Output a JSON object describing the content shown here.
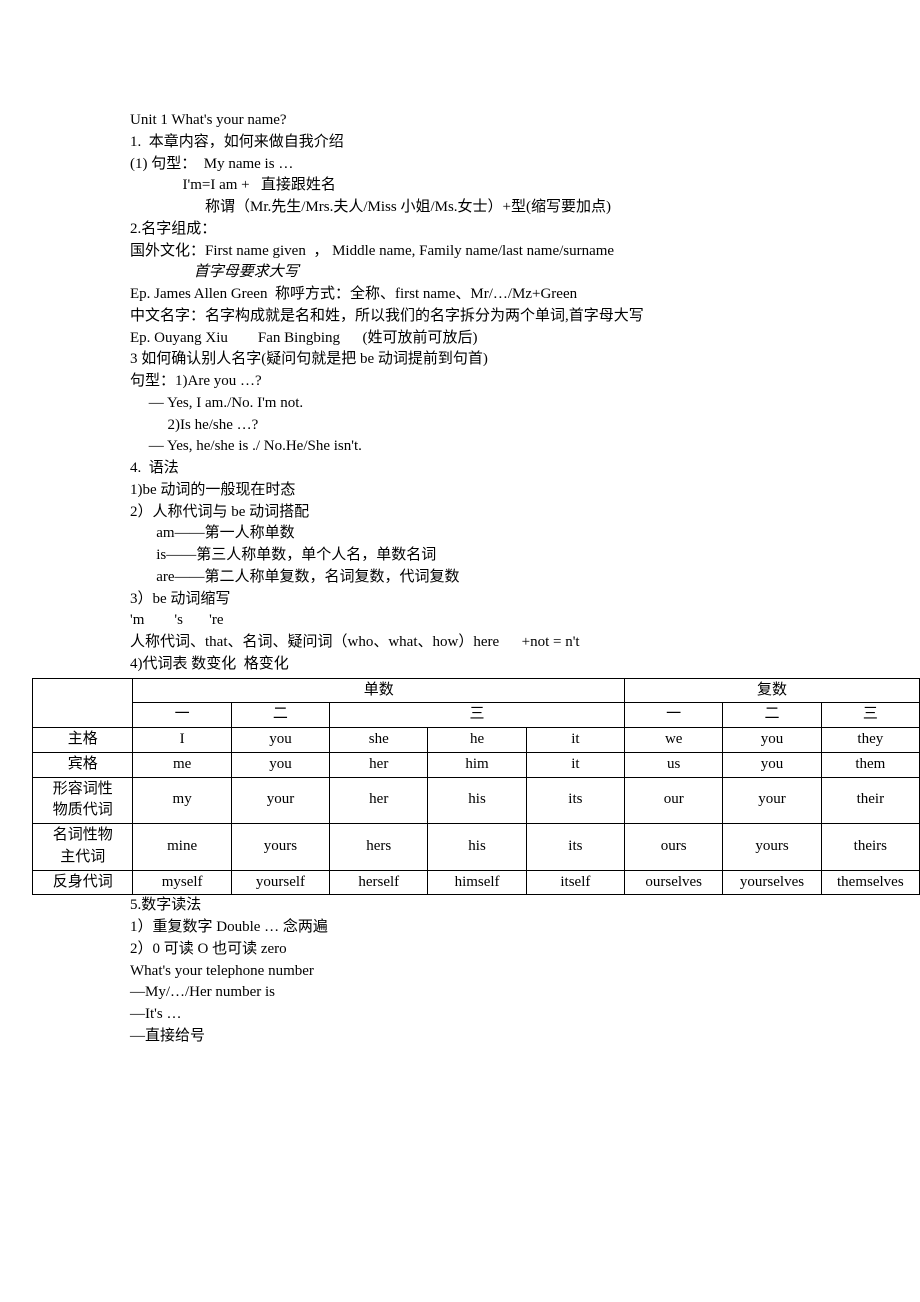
{
  "title": "Unit 1 What's your name?",
  "p1": "1.  本章内容，如何来做自我介绍",
  "p1_1": "(1) 句型：  My name is …",
  "p1_2": "              I'm=I am +   直接跟姓名",
  "p1_3": "                    称谓（Mr.先生/Mrs.夫人/Miss 小姐/Ms.女士）+型(缩写要加点)",
  "p2": "2.名字组成：",
  "p2_1": "国外文化：First name given  ， Middle name, Family name/last name/surname",
  "p2_2": "                 首字母要求大写",
  "p2_3": "Ep. James Allen Green  称呼方式：全称、first name、Mr/…/Mz+Green",
  "p2_4": "中文名字：名字构成就是名和姓，所以我们的名字拆分为两个单词,首字母大写",
  "p2_5": "Ep. Ouyang Xiu        Fan Bingbing      (姓可放前可放后)",
  "p3": "3 如何确认别人名字(疑问句就是把 be 动词提前到句首)",
  "p3_1": "句型：1)Are you …?",
  "p3_2": "     — Yes, I am./No. I'm not.",
  "p3_3": "          2)Is he/she …?",
  "p3_4": "     — Yes, he/she is ./ No.He/She isn't.",
  "p4": "4.  语法",
  "p4_1": "1)be 动词的一般现在时态",
  "p4_2": "2）人称代词与 be 动词搭配",
  "p4_2a": "       am——第一人称单数",
  "p4_2b": "       is——第三人称单数，单个人名，单数名词",
  "p4_2c": "       are——第二人称单复数，名词复数，代词复数",
  "p4_3": "3）be 动词缩写",
  "p4_3a": "'m        's       're",
  "p4_3b": "人称代词、that、名词、疑问词（who、what、how）here      +not = n't",
  "p4_4": "4)代词表 数变化  格变化",
  "table": {
    "head_singular": "单数",
    "head_plural": "复数",
    "sub": {
      "c1": "一",
      "c2": "二",
      "c3": "三"
    },
    "rows": [
      {
        "label": "主格",
        "cells": [
          "I",
          "you",
          "she",
          "he",
          "it",
          "we",
          "you",
          "they"
        ]
      },
      {
        "label": "宾格",
        "cells": [
          "me",
          "you",
          "her",
          "him",
          "it",
          "us",
          "you",
          "them"
        ]
      },
      {
        "label": "形容词性物质代词",
        "cells": [
          "my",
          "your",
          "her",
          "his",
          "its",
          "our",
          "your",
          "their"
        ]
      },
      {
        "label": "名词性物主代词",
        "cells": [
          "mine",
          "yours",
          "hers",
          "his",
          "its",
          "ours",
          "yours",
          "theirs"
        ]
      },
      {
        "label": "反身代词",
        "cells": [
          "myself",
          "yourself",
          "herself",
          "himself",
          "itself",
          "ourselves",
          "yourselves",
          "themselves"
        ]
      }
    ]
  },
  "p5": "5.数字读法",
  "p5_1": "1）重复数字 Double … 念两遍",
  "p5_2": "2）0 可读 O 也可读 zero",
  "p5_3": "What's your telephone number",
  "p5_4": "—My/…/Her number is",
  "p5_5": "—It's …",
  "p5_6": "—直接给号"
}
